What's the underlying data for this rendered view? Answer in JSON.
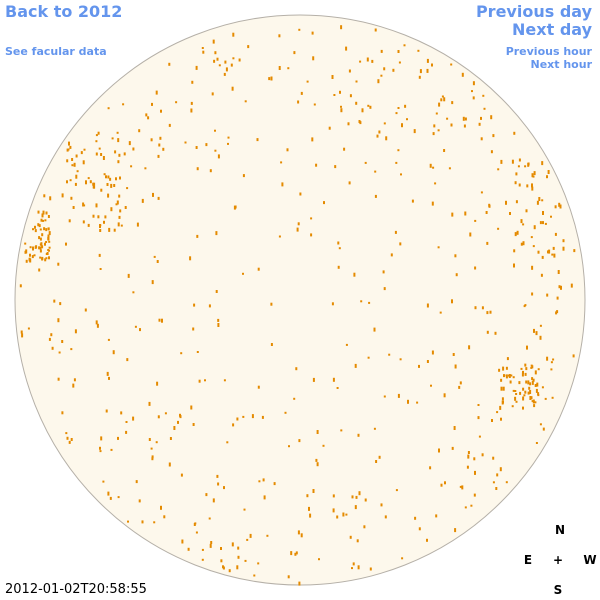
{
  "header": {
    "back": "Back to 2012",
    "see_faculae": "See facular data",
    "previous_day": "Previous day",
    "next_day": "Next day",
    "previous_hour": "Previous hour",
    "next_hour": "Next hour"
  },
  "timestamp": "2012-01-02T20:58:55",
  "compass": {
    "north": "N",
    "east": "E",
    "center": "+",
    "west": "W",
    "south": "S"
  }
}
